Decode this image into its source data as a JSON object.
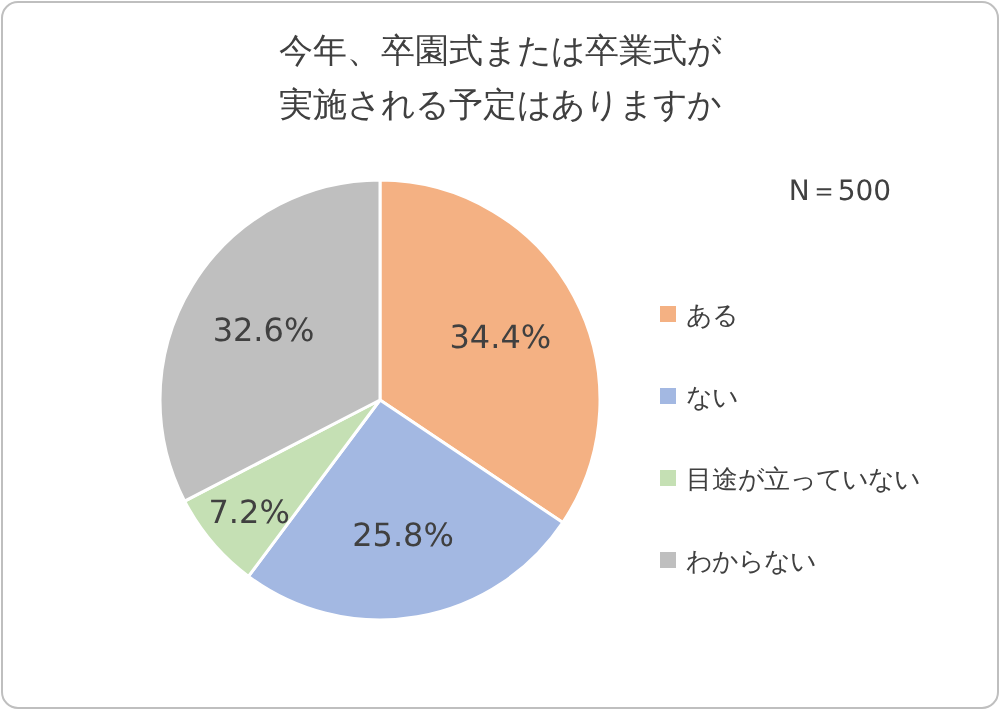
{
  "chart_data": {
    "type": "pie",
    "title": "今年、卒園式または卒業式が実施される予定はありますか",
    "annotations": [
      "N＝500"
    ],
    "categories": [
      "ある",
      "ない",
      "目途が立っていない",
      "わからない"
    ],
    "values": [
      34.4,
      25.8,
      7.2,
      32.6
    ],
    "colors": [
      "#f4b183",
      "#a3b8e2",
      "#c5e0b4",
      "#bfbfbf"
    ],
    "value_labels": [
      "34.4%",
      "25.8%",
      "7.2%",
      "32.6%"
    ],
    "legend": "right"
  }
}
